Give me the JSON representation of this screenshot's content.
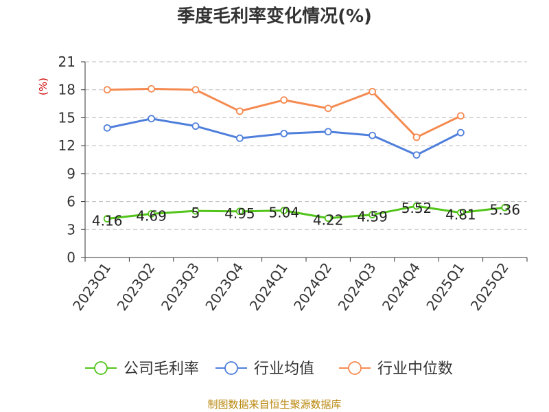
{
  "title": "季度毛利率变化情况(%)",
  "unit": "(%)",
  "source": "制图数据来自恒生聚源数据库",
  "chart_data": {
    "type": "line",
    "categories": [
      "2023Q1",
      "2023Q2",
      "2023Q3",
      "2023Q4",
      "2024Q1",
      "2024Q2",
      "2024Q3",
      "2024Q4",
      "2025Q1",
      "2025Q2"
    ],
    "ylim": [
      0,
      21
    ],
    "yticks": [
      0,
      3,
      6,
      9,
      12,
      15,
      18,
      21
    ],
    "grid": true,
    "legend_position": "bottom",
    "series": [
      {
        "name": "公司毛利率",
        "color": "#52c41a",
        "values": [
          4.16,
          4.69,
          5,
          4.95,
          5.04,
          4.22,
          4.59,
          5.52,
          4.81,
          5.36
        ],
        "labels": [
          "4.16",
          "4.69",
          "5",
          "4.95",
          "5.04",
          "4.22",
          "4.59",
          "5.52",
          "4.81",
          "5.36"
        ]
      },
      {
        "name": "行业均值",
        "color": "#4f7fdc",
        "values": [
          13.9,
          14.9,
          14.1,
          12.8,
          13.3,
          13.5,
          13.1,
          11.0,
          13.4,
          null
        ]
      },
      {
        "name": "行业中位数",
        "color": "#f58a50",
        "values": [
          18.0,
          18.1,
          18.0,
          15.7,
          16.9,
          16.0,
          17.8,
          12.9,
          15.2,
          null
        ]
      }
    ]
  }
}
